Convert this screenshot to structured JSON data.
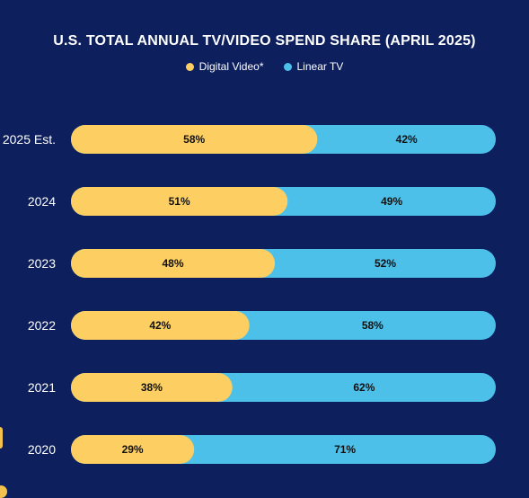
{
  "chart_data": {
    "type": "bar",
    "stacked": true,
    "orientation": "horizontal",
    "title": "U.S. TOTAL ANNUAL TV/VIDEO SPEND SHARE (APRIL 2025)",
    "categories": [
      "2025 Est.",
      "2024",
      "2023",
      "2022",
      "2021",
      "2020"
    ],
    "series": [
      {
        "name": "Digital Video*",
        "color": "#fdcf62",
        "values": [
          58,
          51,
          48,
          42,
          38,
          29
        ]
      },
      {
        "name": "Linear TV",
        "color": "#4dc0ea",
        "values": [
          42,
          49,
          52,
          58,
          62,
          71
        ]
      }
    ],
    "value_suffix": "%",
    "xlim": [
      0,
      100
    ],
    "legend": "top-center",
    "grid": false
  },
  "colors": {
    "background": "#0d1f5c",
    "text": "#ffffff"
  }
}
